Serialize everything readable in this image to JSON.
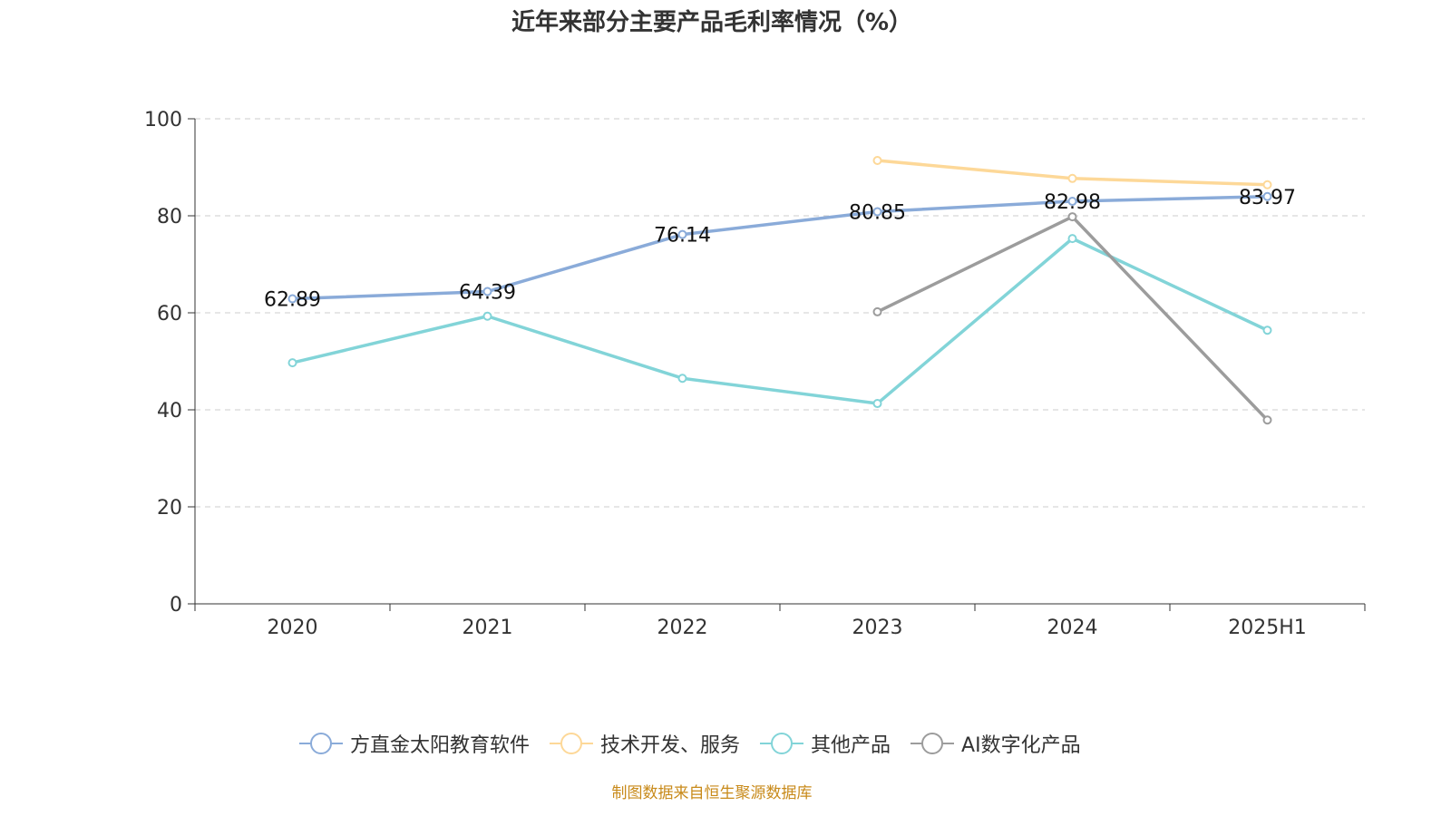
{
  "chart_data": {
    "type": "line",
    "title": "近年来部分主要产品毛利率情况（%）",
    "categories": [
      "2020",
      "2021",
      "2022",
      "2023",
      "2024",
      "2025H1"
    ],
    "ylim": [
      0,
      100
    ],
    "yticks": [
      0,
      20,
      40,
      60,
      80,
      100
    ],
    "grid": true,
    "legend_position": "bottom",
    "series": [
      {
        "name": "方直金太阳教育软件",
        "color": "#8aabd9",
        "values": [
          62.89,
          64.39,
          76.14,
          80.85,
          82.98,
          83.97
        ],
        "show_labels": true
      },
      {
        "name": "技术开发、服务",
        "color": "#fdd898",
        "values": [
          null,
          null,
          null,
          91.4,
          87.7,
          86.4
        ],
        "show_labels": false
      },
      {
        "name": "其他产品",
        "color": "#82d4d8",
        "values": [
          49.7,
          59.3,
          46.5,
          41.3,
          75.3,
          56.4
        ],
        "show_labels": false
      },
      {
        "name": "AI数字化产品",
        "color": "#9c9c9c",
        "values": [
          null,
          null,
          null,
          60.2,
          79.8,
          37.9
        ],
        "show_labels": false
      }
    ]
  },
  "source": "制图数据来自恒生聚源数据库"
}
